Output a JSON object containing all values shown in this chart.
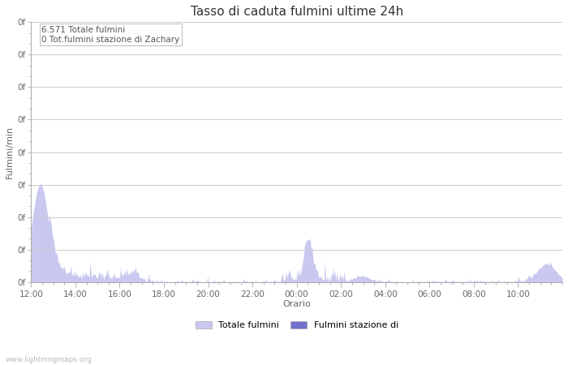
{
  "title": "Tasso di caduta fulmini ultime 24h",
  "xlabel": "Orario",
  "ylabel": "Fulmini/min",
  "annotation_line1": "6.571 Totale fulmini",
  "annotation_line2": "0 Tot.fulmini stazione di Zachary",
  "watermark": "www.lightningmaps.org",
  "ytick_label": "0f",
  "n_yticks": 9,
  "xtick_labels": [
    "12:00",
    "14:00",
    "16:00",
    "18:00",
    "20:00",
    "22:00",
    "00:00",
    "02:00",
    "04:00",
    "06:00",
    "08:00",
    "10:00"
  ],
  "legend_label1": "Totale fulmini",
  "legend_label2": "Fulmini stazione di",
  "fill_color1": "#c8c8f0",
  "fill_color2": "#7070cc",
  "bg_color": "#ffffff",
  "grid_color": "#cccccc",
  "title_fontsize": 11,
  "axis_label_fontsize": 8,
  "tick_fontsize": 7.5,
  "annotation_fontsize": 7.5
}
